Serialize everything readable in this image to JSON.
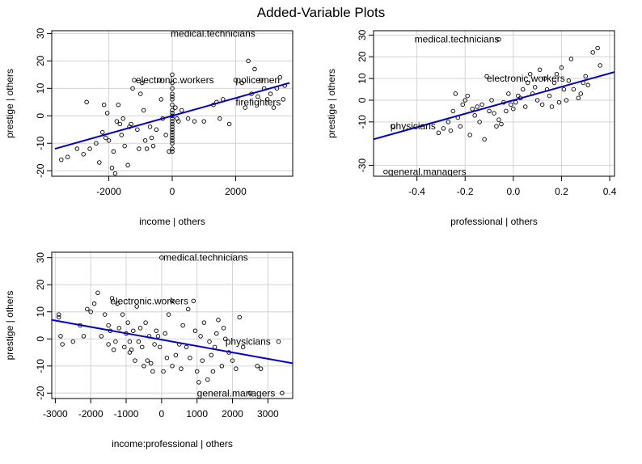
{
  "page_title": "Added-Variable Plots",
  "colors": {
    "line": "#0000cc",
    "grid": "#d3d3d3",
    "point": "#000000"
  },
  "chart_data": [
    {
      "type": "scatter",
      "xlabel": "income | others",
      "ylabel": "prestige  | others",
      "xlim": [
        -3800,
        3800
      ],
      "ylim": [
        -22,
        31
      ],
      "xticks": [
        -2000,
        0,
        2000
      ],
      "xtick_labels": [
        "-2000",
        "0",
        "2000"
      ],
      "yticks": [
        -20,
        -10,
        0,
        10,
        20,
        30
      ],
      "ytick_labels": [
        "-20",
        "-10",
        "0",
        "10",
        "20",
        "30"
      ],
      "grid": true,
      "fit_line": [
        [
          -3700,
          -12
        ],
        [
          3700,
          12
        ]
      ],
      "labels": [
        {
          "text": "medical.technicians",
          "x": -50,
          "y": 30,
          "anchor": "start"
        },
        {
          "text": "electronic.workers",
          "x": -1150,
          "y": 13,
          "anchor": "start"
        },
        {
          "text": "policemen",
          "x": 2000,
          "y": 13,
          "anchor": "start"
        },
        {
          "text": "firefighters",
          "x": 2000,
          "y": 5,
          "anchor": "start"
        }
      ],
      "points": [
        [
          -3500,
          -16
        ],
        [
          -3300,
          -15
        ],
        [
          -3000,
          -12
        ],
        [
          -2800,
          -14
        ],
        [
          -2700,
          5
        ],
        [
          -2600,
          -12
        ],
        [
          -2400,
          -10
        ],
        [
          -2300,
          -17
        ],
        [
          -2200,
          -6
        ],
        [
          -2150,
          4
        ],
        [
          -2100,
          -8
        ],
        [
          -2050,
          1
        ],
        [
          -2000,
          -9
        ],
        [
          -1900,
          -19
        ],
        [
          -1850,
          -13
        ],
        [
          -1800,
          -21
        ],
        [
          -1750,
          -2
        ],
        [
          -1700,
          4
        ],
        [
          -1650,
          -3
        ],
        [
          -1600,
          -7
        ],
        [
          -1550,
          -1
        ],
        [
          -1500,
          -11
        ],
        [
          -1400,
          -18
        ],
        [
          -1350,
          -4
        ],
        [
          -1300,
          -3
        ],
        [
          -1250,
          10
        ],
        [
          -1200,
          13
        ],
        [
          -1100,
          -5
        ],
        [
          -1050,
          -12
        ],
        [
          -1000,
          8
        ],
        [
          -950,
          12
        ],
        [
          -900,
          2
        ],
        [
          -850,
          -9
        ],
        [
          -800,
          -12
        ],
        [
          -700,
          -4
        ],
        [
          -650,
          -8
        ],
        [
          -600,
          -11
        ],
        [
          -500,
          -5
        ],
        [
          -400,
          13
        ],
        [
          -350,
          6
        ],
        [
          -300,
          -1
        ],
        [
          -200,
          -7
        ],
        [
          -100,
          -13
        ],
        [
          0,
          15
        ],
        [
          0,
          12
        ],
        [
          0,
          10
        ],
        [
          0,
          8
        ],
        [
          0,
          7
        ],
        [
          0,
          6
        ],
        [
          0,
          4
        ],
        [
          0,
          2
        ],
        [
          0,
          1
        ],
        [
          0,
          0
        ],
        [
          0,
          -1
        ],
        [
          0,
          -2
        ],
        [
          0,
          -3
        ],
        [
          0,
          -4
        ],
        [
          0,
          -5
        ],
        [
          0,
          -6
        ],
        [
          0,
          -7
        ],
        [
          0,
          -8
        ],
        [
          0,
          -9
        ],
        [
          0,
          -10
        ],
        [
          0,
          -12
        ],
        [
          0,
          -13
        ],
        [
          100,
          3
        ],
        [
          150,
          -1
        ],
        [
          200,
          -2
        ],
        [
          300,
          2
        ],
        [
          500,
          -1
        ],
        [
          700,
          -2
        ],
        [
          1000,
          -2
        ],
        [
          1300,
          4
        ],
        [
          1400,
          5
        ],
        [
          1500,
          -1
        ],
        [
          1600,
          6
        ],
        [
          1800,
          -3
        ],
        [
          2000,
          13
        ],
        [
          2200,
          12
        ],
        [
          2300,
          3
        ],
        [
          2400,
          20
        ],
        [
          2500,
          8
        ],
        [
          2600,
          17
        ],
        [
          2700,
          7
        ],
        [
          2800,
          13
        ],
        [
          2900,
          10
        ],
        [
          3000,
          6
        ],
        [
          3100,
          8
        ],
        [
          3200,
          3
        ],
        [
          3300,
          10
        ],
        [
          3400,
          14
        ],
        [
          3500,
          6
        ],
        [
          3550,
          11
        ]
      ]
    },
    {
      "type": "scatter",
      "xlabel": "professional | others",
      "ylabel": "prestige  | others",
      "xlim": [
        -0.58,
        0.42
      ],
      "ylim": [
        -35,
        32
      ],
      "xticks": [
        -0.4,
        -0.2,
        0.0,
        0.2,
        0.4
      ],
      "xtick_labels": [
        "-0.4",
        "-0.2",
        "0.0",
        "0.2",
        "0.4"
      ],
      "yticks": [
        -30,
        -10,
        0,
        10,
        20,
        30
      ],
      "ytick_labels": [
        "-30",
        "-10",
        "0",
        "10",
        "20",
        "30"
      ],
      "grid": true,
      "fit_line": [
        [
          -0.58,
          -18
        ],
        [
          0.42,
          13
        ]
      ],
      "labels": [
        {
          "text": "medical.technicians",
          "x": -0.41,
          "y": 28,
          "anchor": "start"
        },
        {
          "text": "electronic.workers",
          "x": -0.11,
          "y": 10,
          "anchor": "start"
        },
        {
          "text": "physicians",
          "x": -0.51,
          "y": -12,
          "anchor": "start"
        },
        {
          "text": "general.managers",
          "x": -0.52,
          "y": -33,
          "anchor": "start"
        }
      ],
      "points": [
        [
          -0.53,
          -33
        ],
        [
          -0.5,
          -12
        ],
        [
          -0.31,
          -15
        ],
        [
          -0.29,
          -13
        ],
        [
          -0.27,
          -10
        ],
        [
          -0.26,
          -14
        ],
        [
          -0.25,
          -5
        ],
        [
          -0.24,
          3
        ],
        [
          -0.23,
          -8
        ],
        [
          -0.22,
          -12
        ],
        [
          -0.21,
          -2
        ],
        [
          -0.2,
          0
        ],
        [
          -0.19,
          2
        ],
        [
          -0.18,
          -16
        ],
        [
          -0.17,
          -4
        ],
        [
          -0.16,
          -7
        ],
        [
          -0.15,
          -3
        ],
        [
          -0.14,
          -10
        ],
        [
          -0.13,
          -2
        ],
        [
          -0.12,
          -18
        ],
        [
          -0.11,
          11
        ],
        [
          -0.1,
          -5
        ],
        [
          -0.09,
          0
        ],
        [
          -0.08,
          -6
        ],
        [
          -0.07,
          -12
        ],
        [
          -0.06,
          -9
        ],
        [
          -0.05,
          -11
        ],
        [
          -0.04,
          -1
        ],
        [
          -0.03,
          -5
        ],
        [
          -0.02,
          3
        ],
        [
          -0.01,
          -2
        ],
        [
          0.0,
          -4
        ],
        [
          0.01,
          -1
        ],
        [
          0.02,
          2
        ],
        [
          0.03,
          1
        ],
        [
          0.04,
          5
        ],
        [
          0.05,
          -3
        ],
        [
          0.06,
          8
        ],
        [
          0.07,
          12
        ],
        [
          0.08,
          3
        ],
        [
          0.09,
          6
        ],
        [
          0.1,
          0
        ],
        [
          0.11,
          14
        ],
        [
          0.12,
          -2
        ],
        [
          0.13,
          10
        ],
        [
          0.14,
          5
        ],
        [
          0.15,
          2
        ],
        [
          0.16,
          -3
        ],
        [
          0.17,
          8
        ],
        [
          0.18,
          12
        ],
        [
          0.19,
          -1
        ],
        [
          0.2,
          15
        ],
        [
          0.21,
          5
        ],
        [
          0.22,
          0
        ],
        [
          0.23,
          9
        ],
        [
          0.24,
          19
        ],
        [
          0.25,
          5
        ],
        [
          0.27,
          1
        ],
        [
          0.28,
          3
        ],
        [
          0.29,
          8
        ],
        [
          0.3,
          11
        ],
        [
          0.31,
          7
        ],
        [
          0.33,
          22
        ],
        [
          0.35,
          24
        ],
        [
          0.36,
          16
        ],
        [
          -0.06,
          28
        ]
      ]
    },
    {
      "type": "scatter",
      "xlabel": "income:professional | others",
      "ylabel": "prestige  | others",
      "xlim": [
        -3100,
        3700
      ],
      "ylim": [
        -22,
        32
      ],
      "xticks": [
        -3000,
        -2000,
        -1000,
        0,
        1000,
        2000,
        3000
      ],
      "xtick_labels": [
        "-3000",
        "-2000",
        "-1000",
        "0",
        "1000",
        "2000",
        "3000"
      ],
      "yticks": [
        -20,
        -10,
        0,
        10,
        20,
        30
      ],
      "ytick_labels": [
        "-20",
        "-10",
        "0",
        "10",
        "20",
        "30"
      ],
      "grid": true,
      "fit_line": [
        [
          -3100,
          7
        ],
        [
          3700,
          -9
        ]
      ],
      "labels": [
        {
          "text": "medical.technicians",
          "x": 50,
          "y": 30,
          "anchor": "start"
        },
        {
          "text": "electronic.workers",
          "x": -1450,
          "y": 14,
          "anchor": "start"
        },
        {
          "text": "physicians",
          "x": 1800,
          "y": -1,
          "anchor": "start"
        },
        {
          "text": "general.managers",
          "x": 1000,
          "y": -20,
          "anchor": "start"
        }
      ],
      "points": [
        [
          -2900,
          9
        ],
        [
          -2850,
          1
        ],
        [
          -2800,
          -2
        ],
        [
          -2500,
          -1
        ],
        [
          -2300,
          5
        ],
        [
          -2200,
          1
        ],
        [
          -2100,
          11
        ],
        [
          -2000,
          10
        ],
        [
          -1900,
          13
        ],
        [
          -1800,
          17
        ],
        [
          -1700,
          1
        ],
        [
          -1600,
          9
        ],
        [
          -1500,
          5
        ],
        [
          -1450,
          3
        ],
        [
          -1400,
          15
        ],
        [
          -1350,
          -4
        ],
        [
          -1300,
          -1
        ],
        [
          -1250,
          13
        ],
        [
          -1200,
          4
        ],
        [
          -1100,
          9
        ],
        [
          -1050,
          -3
        ],
        [
          -1000,
          2
        ],
        [
          -950,
          6
        ],
        [
          -900,
          -5
        ],
        [
          -850,
          -4
        ],
        [
          -800,
          3
        ],
        [
          -750,
          -8
        ],
        [
          -700,
          12
        ],
        [
          -650,
          -1
        ],
        [
          -600,
          4
        ],
        [
          -550,
          -3
        ],
        [
          -500,
          -10
        ],
        [
          -450,
          6
        ],
        [
          -400,
          -8
        ],
        [
          -350,
          1
        ],
        [
          -300,
          -9
        ],
        [
          -250,
          -12
        ],
        [
          -200,
          -2
        ],
        [
          -150,
          3
        ],
        [
          -100,
          1
        ],
        [
          -50,
          -3
        ],
        [
          0,
          30
        ],
        [
          50,
          -12
        ],
        [
          100,
          2
        ],
        [
          150,
          -7
        ],
        [
          200,
          9
        ],
        [
          300,
          -10
        ],
        [
          400,
          -6
        ],
        [
          500,
          -2
        ],
        [
          550,
          -11
        ],
        [
          600,
          5
        ],
        [
          700,
          -3
        ],
        [
          750,
          11
        ],
        [
          800,
          -7
        ],
        [
          900,
          14
        ],
        [
          950,
          3
        ],
        [
          1000,
          -12
        ],
        [
          1050,
          -16
        ],
        [
          1100,
          1
        ],
        [
          1150,
          -8
        ],
        [
          1200,
          6
        ],
        [
          1300,
          -15
        ],
        [
          1350,
          -1
        ],
        [
          1400,
          -6
        ],
        [
          1450,
          -12
        ],
        [
          1500,
          -3
        ],
        [
          1550,
          2
        ],
        [
          1600,
          7
        ],
        [
          1700,
          -10
        ],
        [
          1750,
          4
        ],
        [
          1800,
          0
        ],
        [
          1900,
          -5
        ],
        [
          2000,
          -8
        ],
        [
          2100,
          -11
        ],
        [
          2200,
          8
        ],
        [
          2300,
          -3
        ],
        [
          2500,
          -20
        ],
        [
          2700,
          -10
        ],
        [
          2800,
          -11
        ],
        [
          3300,
          -1
        ],
        [
          3400,
          -20
        ],
        [
          -900,
          -1
        ],
        [
          -1500,
          -2
        ],
        [
          300,
          14
        ],
        [
          -2900,
          8
        ]
      ]
    }
  ]
}
